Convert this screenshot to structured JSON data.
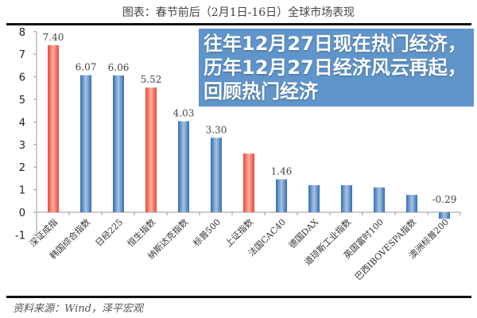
{
  "chart_data": {
    "type": "bar",
    "title": "图表：春节前后（2月1日-16日）全球市场表现",
    "categories": [
      "深证成指",
      "韩国综合指数",
      "日经225",
      "恒生指数",
      "纳斯达克指数",
      "标普500",
      "上证指数",
      "法国CAC40",
      "德国DAX",
      "道琼斯工业指数",
      "英国富时100",
      "巴西IBOVESPA指数",
      "澳洲标普200"
    ],
    "values": [
      7.4,
      6.07,
      6.06,
      5.52,
      4.03,
      3.3,
      2.6,
      1.46,
      1.2,
      1.2,
      1.1,
      0.77,
      -0.29
    ],
    "data_labels": [
      "7.40",
      "6.07",
      "6.06",
      "5.52",
      "4.03",
      "3.30",
      "",
      "1.46",
      "",
      "",
      "",
      "",
      "-0.29"
    ],
    "highlight": [
      true,
      false,
      false,
      true,
      false,
      false,
      true,
      false,
      false,
      false,
      false,
      false,
      false
    ],
    "colors": {
      "highlight": "#e8473a",
      "normal": "#2e6fb7"
    },
    "ylim": [
      -1,
      8
    ],
    "yticks": [
      "-1",
      "0",
      "1",
      "2",
      "3",
      "4",
      "5",
      "6",
      "7",
      "8"
    ],
    "grid": false,
    "xlabel": "",
    "ylabel": "",
    "source": "资料来源：Wind，泽平宏观"
  },
  "banner": {
    "headline": "往年12月27日现在热门经济，历年12月27日经济风云再起，回顾热门经济"
  }
}
